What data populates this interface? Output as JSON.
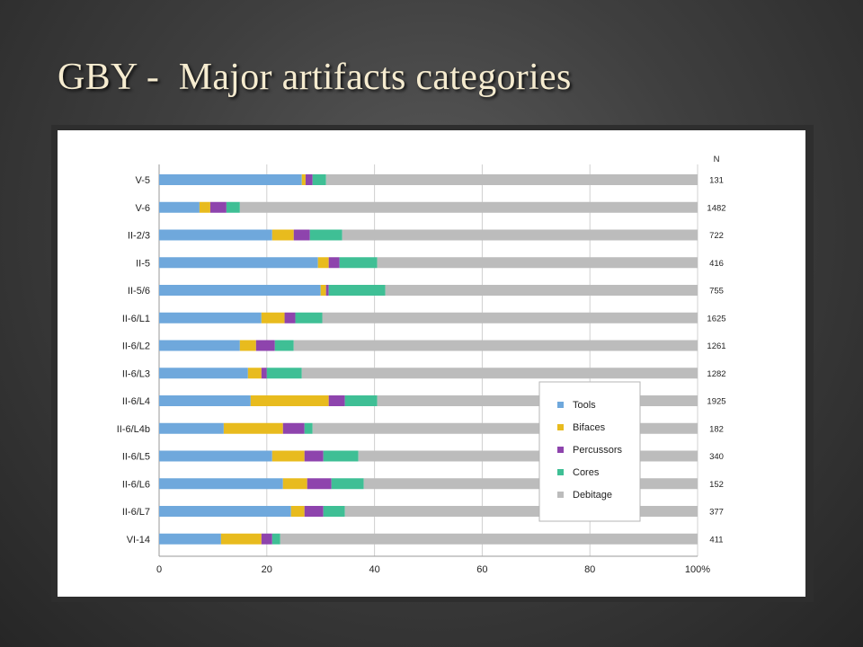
{
  "slide": {
    "title": "GBY -  Major artifacts categories"
  },
  "chart_data": {
    "type": "bar",
    "orientation": "horizontal",
    "stacked": true,
    "normalized_percent": true,
    "categories": [
      "V-5",
      "V-6",
      "II-2/3",
      "II-5",
      "II-5/6",
      "II-6/L1",
      "II-6/L2",
      "II-6/L3",
      "II-6/L4",
      "II-6/L4b",
      "II-6/L5",
      "II-6/L6",
      "II-6/L7",
      "VI-14"
    ],
    "n_header": "N",
    "n_values": [
      "131",
      "1482",
      "722",
      "416",
      "755",
      "1625",
      "1261",
      "1282",
      "1925",
      "182",
      "340",
      "152",
      "377",
      "411"
    ],
    "series": [
      {
        "name": "Tools",
        "color": "#6fa8dc",
        "values": [
          26.5,
          7.5,
          21.0,
          29.5,
          30.0,
          19.0,
          15.0,
          16.5,
          17.0,
          12.0,
          21.0,
          23.0,
          24.5,
          11.5
        ]
      },
      {
        "name": "Bifaces",
        "color": "#e8bb1e",
        "values": [
          0.7,
          2.0,
          4.0,
          2.0,
          1.0,
          4.3,
          3.0,
          2.5,
          14.5,
          11.0,
          6.0,
          4.5,
          2.5,
          7.5
        ]
      },
      {
        "name": "Percussors",
        "color": "#8e44ad",
        "values": [
          1.3,
          3.0,
          3.0,
          2.0,
          0.5,
          2.0,
          3.5,
          1.0,
          3.0,
          4.0,
          3.5,
          4.5,
          3.5,
          2.0
        ]
      },
      {
        "name": "Cores",
        "color": "#3fbf95",
        "values": [
          2.5,
          2.5,
          6.0,
          7.0,
          10.5,
          5.0,
          3.5,
          6.5,
          6.0,
          1.5,
          6.5,
          6.0,
          4.0,
          1.5
        ]
      },
      {
        "name": "Debitage",
        "color": "#bcbcbc",
        "values": [
          69.0,
          85.0,
          66.0,
          59.5,
          58.0,
          69.7,
          75.0,
          73.5,
          59.5,
          71.5,
          63.0,
          62.0,
          65.5,
          77.5
        ]
      }
    ],
    "x_ticks": [
      "0",
      "20",
      "40",
      "60",
      "80",
      "100%"
    ],
    "xlim": [
      0,
      100
    ],
    "grid": true,
    "legend_position": "right"
  }
}
